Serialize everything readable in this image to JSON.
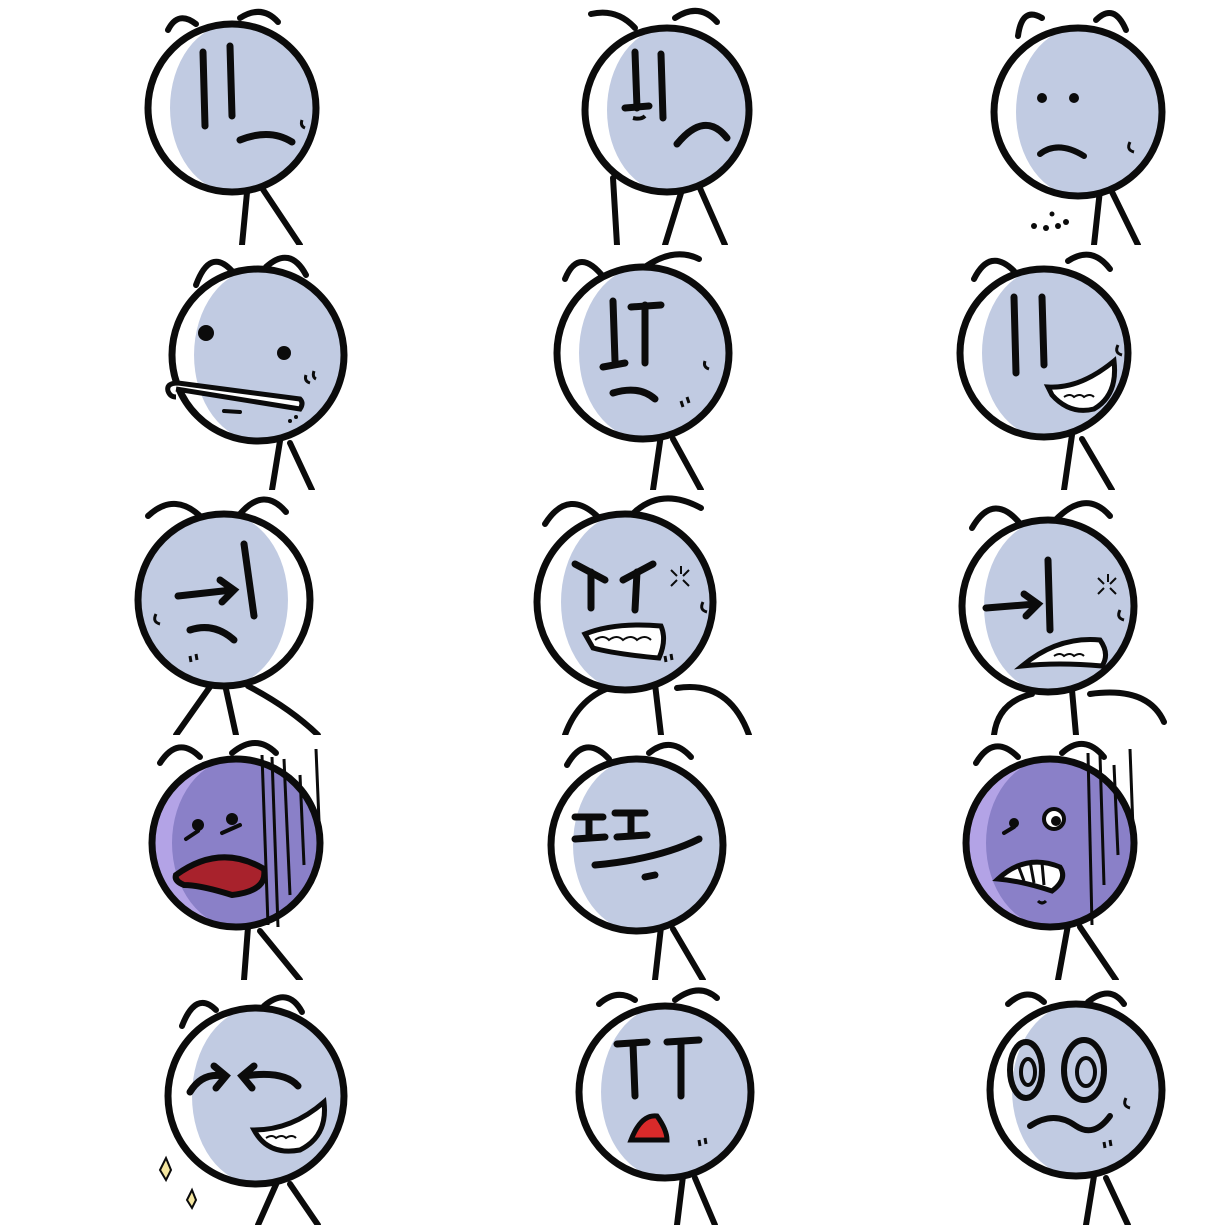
{
  "sheet": {
    "grid": {
      "rows": 5,
      "columns": 3
    },
    "palette": {
      "line": "#0b0b0b",
      "face": "#ffffff",
      "shade": "#c1cbe2",
      "purple_face": "#b3a3e6",
      "purple_shade": "#8a80c8",
      "tongue": "#a8222c",
      "mouth_red": "#d92a2a",
      "sparkle": "#f5e6a0"
    },
    "expressions": [
      {
        "id": "deadpan-frown",
        "tint": "white"
      },
      {
        "id": "skeptical-frown",
        "tint": "white"
      },
      {
        "id": "worried-dots",
        "tint": "white"
      },
      {
        "id": "staring-duck-lips",
        "tint": "white"
      },
      {
        "id": "stern-brows",
        "tint": "white"
      },
      {
        "id": "sly-grin",
        "tint": "white"
      },
      {
        "id": "side-glance-frown",
        "tint": "white"
      },
      {
        "id": "angry-grit-teeth",
        "tint": "white"
      },
      {
        "id": "side-glance-angry",
        "tint": "white"
      },
      {
        "id": "shocked-tongue",
        "tint": "purple"
      },
      {
        "id": "smug-smirk",
        "tint": "white"
      },
      {
        "id": "horrified-purple",
        "tint": "purple"
      },
      {
        "id": "laughing-squint",
        "tint": "white"
      },
      {
        "id": "surprised-open-mouth",
        "tint": "white"
      },
      {
        "id": "wide-eyed-panic",
        "tint": "white"
      }
    ]
  }
}
